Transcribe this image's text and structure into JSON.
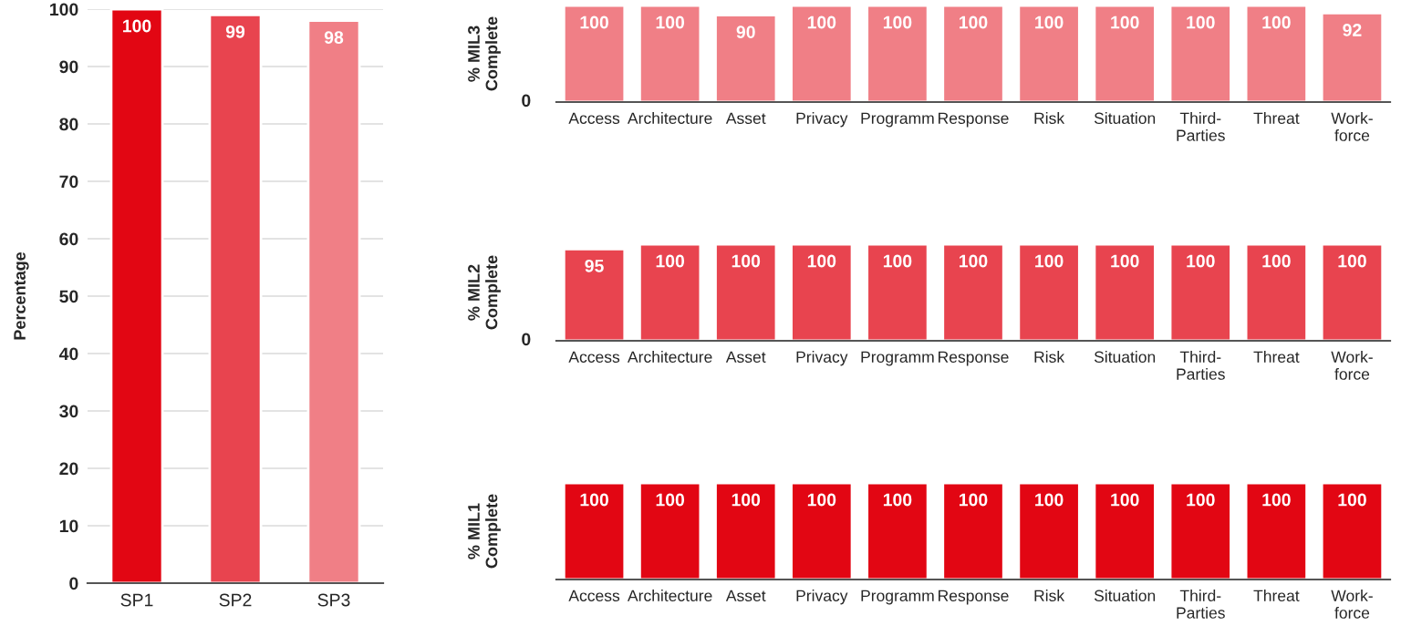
{
  "chart_data": [
    {
      "type": "bar",
      "ylabel": "Percentage",
      "categories": [
        "SP1",
        "SP2",
        "SP3"
      ],
      "values": [
        100,
        99,
        98
      ],
      "colors": [
        "#e20613",
        "#e8444f",
        "#f07f86"
      ],
      "ylim": [
        0,
        100
      ],
      "yticks": [
        0,
        10,
        20,
        30,
        40,
        50,
        60,
        70,
        80,
        90,
        100
      ],
      "grid": "y",
      "data_labels": true
    },
    {
      "type": "bar",
      "ylabel": "% MIL3\nComplete",
      "categories": [
        "Access",
        "Architecture",
        "Asset",
        "Privacy",
        "Programm",
        "Response",
        "Risk",
        "Situation",
        "Third-\nParties",
        "Threat",
        "Work-\nforce"
      ],
      "values": [
        100,
        100,
        90,
        100,
        100,
        100,
        100,
        100,
        100,
        100,
        92
      ],
      "color": "#f07f86",
      "annotations": [
        "0"
      ],
      "data_labels": true
    },
    {
      "type": "bar",
      "ylabel": "% MIL2\nComplete",
      "categories": [
        "Access",
        "Architecture",
        "Asset",
        "Privacy",
        "Programm",
        "Response",
        "Risk",
        "Situation",
        "Third-\nParties",
        "Threat",
        "Work-\nforce"
      ],
      "values": [
        95,
        100,
        100,
        100,
        100,
        100,
        100,
        100,
        100,
        100,
        100
      ],
      "color": "#e8444f",
      "annotations": [
        "0"
      ],
      "data_labels": true
    },
    {
      "type": "bar",
      "ylabel": "% MIL1\nComplete",
      "categories": [
        "Access",
        "Architecture",
        "Asset",
        "Privacy",
        "Programm",
        "Response",
        "Risk",
        "Situation",
        "Third-\nParties",
        "Threat",
        "Work-\nforce"
      ],
      "values": [
        100,
        100,
        100,
        100,
        100,
        100,
        100,
        100,
        100,
        100,
        100
      ],
      "color": "#e20613",
      "data_labels": true
    }
  ]
}
